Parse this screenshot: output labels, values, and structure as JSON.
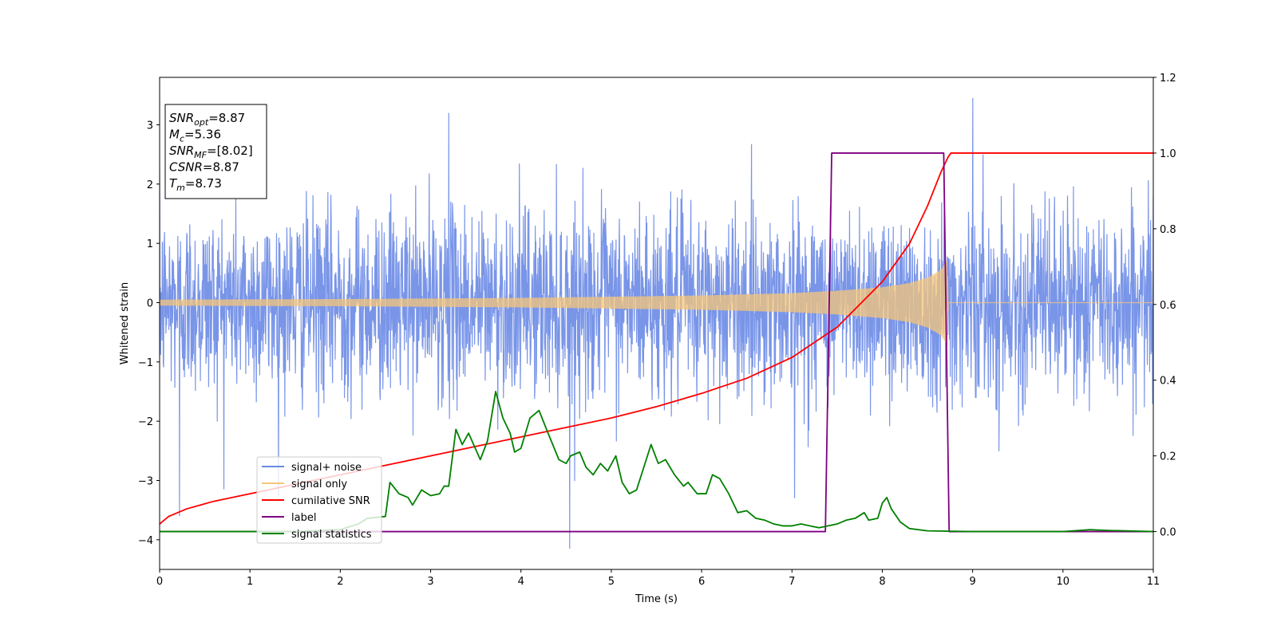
{
  "chart_data": {
    "type": "line",
    "xlabel": "Time (s)",
    "ylabel": "Whitened strain",
    "xlim": [
      0,
      11
    ],
    "ylim_left": [
      -4.5,
      3.8
    ],
    "ylim_right": [
      -0.1,
      1.2
    ],
    "x_ticks": [
      0,
      1,
      2,
      3,
      4,
      5,
      6,
      7,
      8,
      9,
      10,
      11
    ],
    "y_ticks_left": [
      -4,
      -3,
      -2,
      -1,
      0,
      1,
      2,
      3
    ],
    "y_ticks_right": [
      0.0,
      0.2,
      0.4,
      0.6,
      0.8,
      1.0,
      1.2
    ],
    "legend_position": "lower-left",
    "grid": false,
    "info_box": {
      "snr_opt": "=8.87",
      "mc": "=5.36",
      "snr_mf": "=[8.02]",
      "csnr": "=8.87",
      "tm": "=8.73"
    },
    "series": [
      {
        "name": "signal+ noise",
        "axis": "left",
        "color": "#6a8ae6",
        "kind": "noise",
        "description_values": {
          "std": 1.0,
          "samples": 3000,
          "spikes": [
            [
              0.22,
              -3.6
            ],
            [
              4.54,
              -4.15
            ],
            [
              9.0,
              3.45
            ],
            [
              3.2,
              3.2
            ],
            [
              7.03,
              -3.3
            ]
          ]
        }
      },
      {
        "name": "signal only",
        "axis": "left",
        "color": "#f5c67a",
        "kind": "chirp",
        "envelope": {
          "x": [
            0,
            2,
            4,
            6,
            7,
            7.5,
            8,
            8.3,
            8.5,
            8.65,
            8.72,
            8.73,
            11
          ],
          "amp": [
            0.05,
            0.06,
            0.08,
            0.12,
            0.16,
            0.2,
            0.26,
            0.33,
            0.42,
            0.55,
            0.72,
            0.0,
            0.0
          ]
        }
      },
      {
        "name": "cumilative SNR",
        "axis": "right",
        "color": "#ff0000",
        "x": [
          0,
          0.1,
          0.3,
          0.6,
          1,
          1.5,
          2,
          2.5,
          3,
          3.5,
          4,
          4.5,
          5,
          5.5,
          6,
          6.5,
          7,
          7.5,
          8,
          8.3,
          8.5,
          8.65,
          8.73,
          8.76,
          9,
          10,
          11
        ],
        "y": [
          0.02,
          0.04,
          0.06,
          0.08,
          0.1,
          0.125,
          0.15,
          0.175,
          0.2,
          0.225,
          0.25,
          0.275,
          0.3,
          0.33,
          0.365,
          0.405,
          0.46,
          0.54,
          0.66,
          0.76,
          0.86,
          0.95,
          0.99,
          1.0,
          1.0,
          1.0,
          1.0
        ]
      },
      {
        "name": "label",
        "axis": "right",
        "color": "#800080",
        "x": [
          0,
          7.37,
          7.44,
          8.68,
          8.74,
          11
        ],
        "y": [
          0,
          0,
          1,
          1,
          0,
          0
        ]
      },
      {
        "name": "signal statistics",
        "axis": "right",
        "color": "#008000",
        "x": [
          0,
          1,
          1.5,
          2,
          2.2,
          2.3,
          2.5,
          2.55,
          2.65,
          2.75,
          2.8,
          2.9,
          3.0,
          3.1,
          3.15,
          3.2,
          3.28,
          3.35,
          3.42,
          3.55,
          3.63,
          3.72,
          3.8,
          3.88,
          3.93,
          4.0,
          4.1,
          4.2,
          4.3,
          4.42,
          4.5,
          4.55,
          4.65,
          4.72,
          4.8,
          4.88,
          4.96,
          5.05,
          5.12,
          5.2,
          5.28,
          5.36,
          5.44,
          5.52,
          5.6,
          5.7,
          5.8,
          5.85,
          5.95,
          6.05,
          6.12,
          6.2,
          6.3,
          6.4,
          6.5,
          6.6,
          6.7,
          6.8,
          6.9,
          7.0,
          7.1,
          7.3,
          7.5,
          7.6,
          7.7,
          7.8,
          7.85,
          7.95,
          8.0,
          8.05,
          8.1,
          8.2,
          8.3,
          8.5,
          9,
          9.5,
          10,
          10.3,
          10.5,
          11
        ],
        "y": [
          0.0,
          0.0,
          0.0,
          0.005,
          0.02,
          0.035,
          0.04,
          0.13,
          0.1,
          0.09,
          0.07,
          0.11,
          0.095,
          0.1,
          0.12,
          0.12,
          0.27,
          0.23,
          0.26,
          0.19,
          0.24,
          0.37,
          0.3,
          0.26,
          0.21,
          0.22,
          0.3,
          0.32,
          0.26,
          0.19,
          0.18,
          0.2,
          0.21,
          0.17,
          0.15,
          0.18,
          0.16,
          0.2,
          0.13,
          0.1,
          0.11,
          0.17,
          0.23,
          0.18,
          0.19,
          0.15,
          0.12,
          0.13,
          0.1,
          0.1,
          0.15,
          0.14,
          0.1,
          0.05,
          0.055,
          0.035,
          0.03,
          0.02,
          0.015,
          0.015,
          0.02,
          0.01,
          0.02,
          0.03,
          0.035,
          0.05,
          0.03,
          0.035,
          0.075,
          0.09,
          0.06,
          0.025,
          0.008,
          0.002,
          0.0,
          0.0,
          0.0,
          0.005,
          0.003,
          0.0
        ]
      }
    ]
  }
}
